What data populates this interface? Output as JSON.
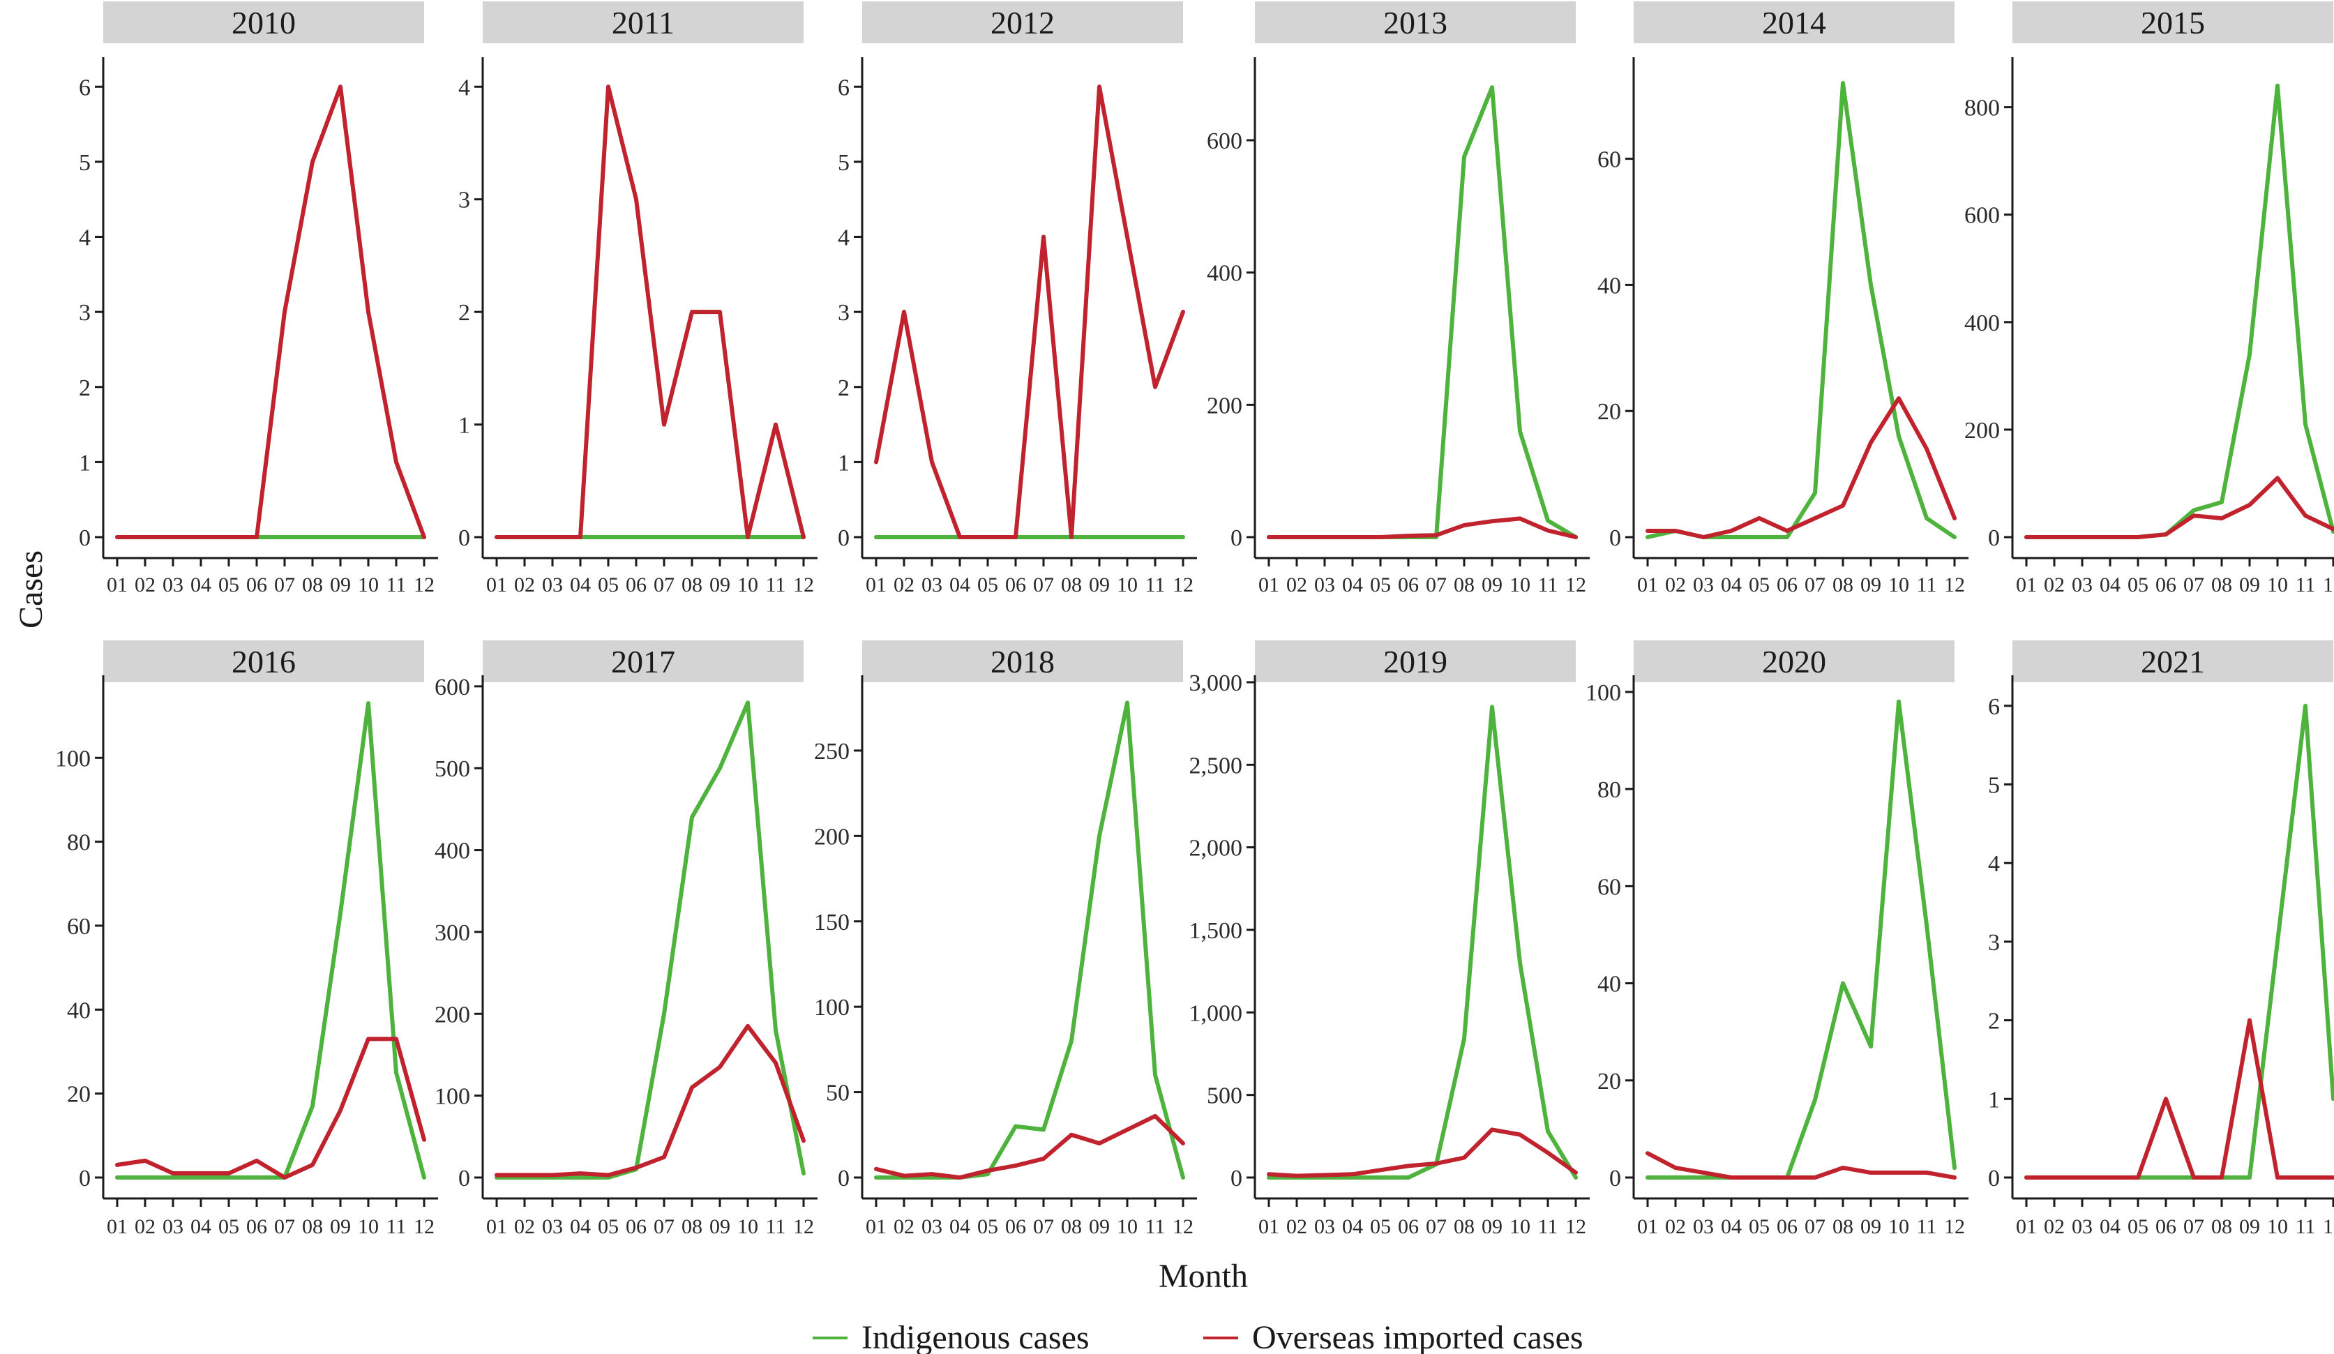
{
  "chart_data": {
    "type": "line",
    "xlabel": "Month",
    "ylabel": "Cases",
    "months": [
      "01",
      "02",
      "03",
      "04",
      "05",
      "06",
      "07",
      "08",
      "09",
      "10",
      "11",
      "12"
    ],
    "colors": {
      "indigenous": "#4db33d",
      "imported": "#c0232e"
    },
    "legend": [
      {
        "key": "indigenous",
        "label": "Indigenous cases"
      },
      {
        "key": "imported",
        "label": "Overseas imported cases"
      }
    ],
    "panels": [
      {
        "year": "2010",
        "ymax": 6.3,
        "ticks": [
          0,
          1,
          2,
          3,
          4,
          5,
          6
        ],
        "tick_labels": [
          "0",
          "1",
          "2",
          "3",
          "4",
          "5",
          "6"
        ],
        "indigenous": [
          0,
          0,
          0,
          0,
          0,
          0,
          0,
          0,
          0,
          0,
          0,
          0
        ],
        "imported": [
          0,
          0,
          0,
          0,
          0,
          0,
          3,
          5,
          6,
          3,
          1,
          0
        ]
      },
      {
        "year": "2011",
        "ymax": 4.2,
        "ticks": [
          0,
          1,
          2,
          3,
          4
        ],
        "tick_labels": [
          "0",
          "1",
          "2",
          "3",
          "4"
        ],
        "indigenous": [
          0,
          0,
          0,
          0,
          0,
          0,
          0,
          0,
          0,
          0,
          0,
          0
        ],
        "imported": [
          0,
          0,
          0,
          0,
          4,
          3,
          1,
          2,
          2,
          0,
          1,
          0
        ]
      },
      {
        "year": "2012",
        "ymax": 6.3,
        "ticks": [
          0,
          1,
          2,
          3,
          4,
          5,
          6
        ],
        "tick_labels": [
          "0",
          "1",
          "2",
          "3",
          "4",
          "5",
          "6"
        ],
        "indigenous": [
          0,
          0,
          0,
          0,
          0,
          0,
          0,
          0,
          0,
          0,
          0,
          0
        ],
        "imported": [
          1,
          3,
          1,
          0,
          0,
          0,
          4,
          0,
          6,
          4,
          2,
          3
        ]
      },
      {
        "year": "2013",
        "ymax": 715,
        "ticks": [
          0,
          200,
          400,
          600
        ],
        "tick_labels": [
          "0",
          "200",
          "400",
          "600"
        ],
        "indigenous": [
          0,
          0,
          0,
          0,
          0,
          0,
          0,
          575,
          680,
          160,
          25,
          0
        ],
        "imported": [
          0,
          0,
          0,
          0,
          0,
          2,
          3,
          18,
          24,
          28,
          10,
          0
        ]
      },
      {
        "year": "2014",
        "ymax": 75,
        "ticks": [
          0,
          20,
          40,
          60
        ],
        "tick_labels": [
          "0",
          "20",
          "40",
          "60"
        ],
        "indigenous": [
          0,
          1,
          0,
          0,
          0,
          0,
          7,
          72,
          40,
          16,
          3,
          0
        ],
        "imported": [
          1,
          1,
          0,
          1,
          3,
          1,
          3,
          5,
          15,
          22,
          14,
          3
        ]
      },
      {
        "year": "2015",
        "ymax": 880,
        "ticks": [
          0,
          200,
          400,
          600,
          800
        ],
        "tick_labels": [
          "0",
          "200",
          "400",
          "600",
          "800"
        ],
        "indigenous": [
          0,
          0,
          0,
          0,
          0,
          5,
          50,
          65,
          340,
          840,
          210,
          10
        ],
        "imported": [
          0,
          0,
          0,
          0,
          0,
          5,
          40,
          35,
          60,
          110,
          40,
          15
        ]
      },
      {
        "year": "2016",
        "ymax": 118,
        "ticks": [
          0,
          20,
          40,
          60,
          80,
          100
        ],
        "tick_labels": [
          "0",
          "20",
          "40",
          "60",
          "80",
          "100"
        ],
        "indigenous": [
          0,
          0,
          0,
          0,
          0,
          0,
          0,
          17,
          63,
          113,
          25,
          0
        ],
        "imported": [
          3,
          4,
          1,
          1,
          1,
          4,
          0,
          3,
          16,
          33,
          33,
          9
        ]
      },
      {
        "year": "2017",
        "ymax": 605,
        "ticks": [
          0,
          100,
          200,
          300,
          400,
          500,
          600
        ],
        "tick_labels": [
          "0",
          "100",
          "200",
          "300",
          "400",
          "500",
          "600"
        ],
        "indigenous": [
          0,
          0,
          0,
          0,
          0,
          10,
          200,
          440,
          500,
          580,
          180,
          5
        ],
        "imported": [
          3,
          3,
          3,
          5,
          3,
          12,
          25,
          110,
          135,
          185,
          140,
          45
        ]
      },
      {
        "year": "2018",
        "ymax": 290,
        "ticks": [
          0,
          50,
          100,
          150,
          200,
          250
        ],
        "tick_labels": [
          "0",
          "50",
          "100",
          "150",
          "200",
          "250"
        ],
        "indigenous": [
          0,
          0,
          0,
          0,
          2,
          30,
          28,
          80,
          200,
          278,
          60,
          0
        ],
        "imported": [
          5,
          1,
          2,
          0,
          4,
          7,
          11,
          25,
          20,
          28,
          36,
          20
        ]
      },
      {
        "year": "2019",
        "ymax": 3000,
        "ticks": [
          0,
          500,
          1000,
          1500,
          2000,
          2500,
          3000
        ],
        "tick_labels": [
          "0",
          "500",
          "1,000",
          "1,500",
          "2,000",
          "2,500",
          "3,000"
        ],
        "indigenous": [
          0,
          0,
          0,
          0,
          0,
          0,
          80,
          840,
          2850,
          1300,
          280,
          0
        ],
        "imported": [
          20,
          10,
          15,
          20,
          45,
          70,
          85,
          120,
          290,
          260,
          150,
          30
        ]
      },
      {
        "year": "2020",
        "ymax": 102,
        "ticks": [
          0,
          20,
          40,
          60,
          80,
          100
        ],
        "tick_labels": [
          "0",
          "20",
          "40",
          "60",
          "80",
          "100"
        ],
        "indigenous": [
          0,
          0,
          0,
          0,
          0,
          0,
          16,
          40,
          27,
          98,
          52,
          2
        ],
        "imported": [
          5,
          2,
          1,
          0,
          0,
          0,
          0,
          2,
          1,
          1,
          1,
          0
        ]
      },
      {
        "year": "2021",
        "ymax": 6.3,
        "ticks": [
          0,
          1,
          2,
          3,
          4,
          5,
          6
        ],
        "tick_labels": [
          "0",
          "1",
          "2",
          "3",
          "4",
          "5",
          "6"
        ],
        "indigenous": [
          0,
          0,
          0,
          0,
          0,
          0,
          0,
          0,
          0,
          3,
          6,
          1
        ],
        "imported": [
          0,
          0,
          0,
          0,
          0,
          1,
          0,
          0,
          2,
          0,
          0,
          0
        ]
      }
    ]
  }
}
